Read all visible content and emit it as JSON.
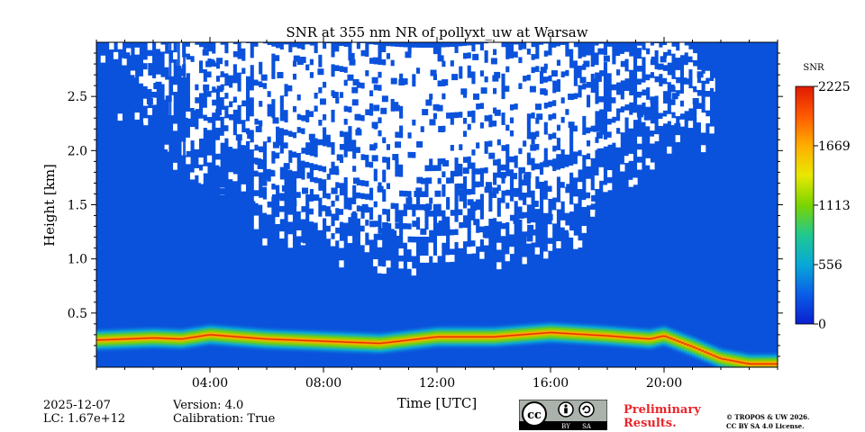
{
  "chart_data": {
    "type": "heatmap",
    "title": "SNR at 355 nm NR of pollyxt_uw at Warsaw",
    "xlabel": "Time [UTC]",
    "ylabel": "Height [km]",
    "xlim_hours": [
      0,
      24
    ],
    "ylim_km": [
      0,
      3.0
    ],
    "x_ticks": [
      {
        "hour": 4,
        "label": "04:00"
      },
      {
        "hour": 8,
        "label": "08:00"
      },
      {
        "hour": 12,
        "label": "12:00"
      },
      {
        "hour": 16,
        "label": "16:00"
      },
      {
        "hour": 20,
        "label": "20:00"
      }
    ],
    "y_ticks": [
      {
        "km": 0.5,
        "label": "0.5"
      },
      {
        "km": 1.0,
        "label": "1.0"
      },
      {
        "km": 1.5,
        "label": "1.5"
      },
      {
        "km": 2.0,
        "label": "2.0"
      },
      {
        "km": 2.5,
        "label": "2.5"
      }
    ],
    "colorbar": {
      "label": "SNR",
      "min": 0,
      "max": 2225,
      "ticks": [
        {
          "value": 0,
          "label": "0"
        },
        {
          "value": 556,
          "label": "556"
        },
        {
          "value": 1113,
          "label": "1113"
        },
        {
          "value": 1669,
          "label": "1669"
        },
        {
          "value": 2225,
          "label": "2225"
        }
      ],
      "colors": [
        "#0a1fcf",
        "#0a5de8",
        "#08a8d8",
        "#20c890",
        "#7ad400",
        "#e8e800",
        "#ffae00",
        "#ff5a00",
        "#e01a00"
      ]
    },
    "layer_peak_height_km": [
      [
        0,
        0.25
      ],
      [
        2,
        0.27
      ],
      [
        3,
        0.26
      ],
      [
        4,
        0.3
      ],
      [
        6,
        0.26
      ],
      [
        8,
        0.24
      ],
      [
        10,
        0.22
      ],
      [
        12,
        0.28
      ],
      [
        14,
        0.28
      ],
      [
        16,
        0.32
      ],
      [
        18,
        0.29
      ],
      [
        19.5,
        0.26
      ],
      [
        20,
        0.29
      ],
      [
        21,
        0.19
      ],
      [
        22,
        0.08
      ],
      [
        23,
        0.03
      ],
      [
        24,
        0.03
      ]
    ],
    "background_color": "#0a52dc",
    "low_snr_color": "#ffffff"
  },
  "footer": {
    "date": "2025-12-07",
    "lc": "LC: 1.67e+12",
    "version": "Version: 4.0",
    "calibration": "Calibration: True",
    "preliminary_line1": "Preliminary",
    "preliminary_line2": "Results.",
    "copyright_line1": "© TROPOS & UW 2026.",
    "copyright_line2": "CC BY SA 4.0 License.",
    "cc_text": "cc",
    "by_text": "BY",
    "sa_text": "SA"
  }
}
